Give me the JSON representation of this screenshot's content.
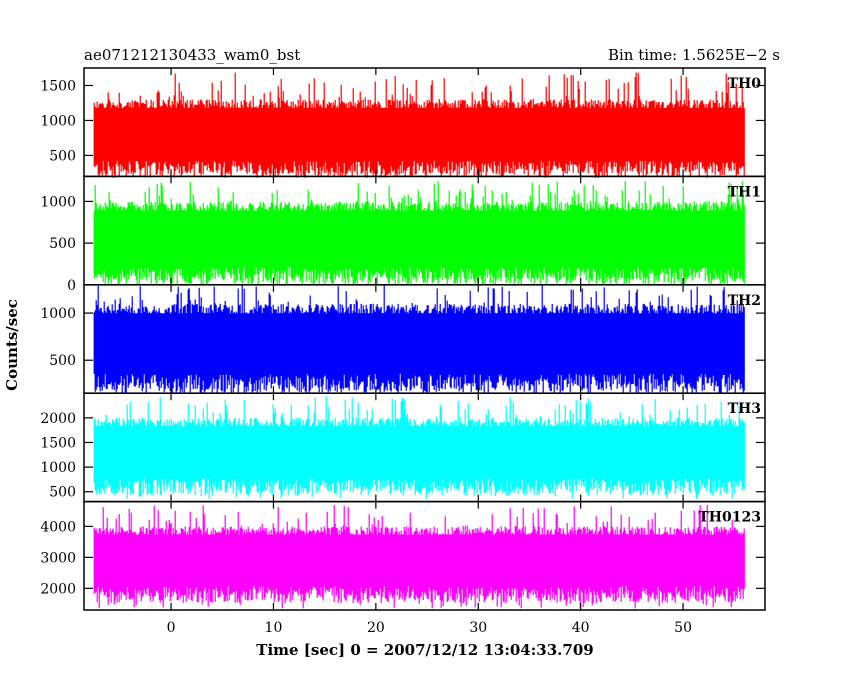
{
  "chart_data": {
    "type": "line",
    "title_left": "ae071212130433_wam0_bst",
    "title_right": "Bin time: 1.5625E−2 s",
    "xlabel": "Time [sec] 0 = 2007/12/12 13:04:33.709",
    "ylabel": "Counts/sec",
    "xlim": [
      -8.5,
      58
    ],
    "x_range_data": [
      -7.5,
      56
    ],
    "x_ticks": [
      0,
      10,
      20,
      30,
      40,
      50
    ],
    "x_tick_labels": [
      "0",
      "10",
      "20",
      "30",
      "40",
      "50"
    ],
    "grid": false,
    "panels": [
      {
        "label": "TH0",
        "color": "#ff0000",
        "ylim": [
          200,
          1750
        ],
        "ticks": [
          500,
          1000,
          1500
        ],
        "tick_labels": [
          "500",
          "1000",
          "1500"
        ],
        "low": 300,
        "high": 1300,
        "min_spike": 200,
        "max_spike": 1700
      },
      {
        "label": "TH1",
        "color": "#00ff00",
        "ylim": [
          0,
          1300
        ],
        "ticks": [
          0,
          500,
          1000
        ],
        "tick_labels": [
          "0",
          "500",
          "1000"
        ],
        "low": 100,
        "high": 1000,
        "min_spike": 50,
        "max_spike": 1250
      },
      {
        "label": "TH2",
        "color": "#0000ff",
        "ylim": [
          150,
          1300
        ],
        "ticks": [
          500,
          1000
        ],
        "tick_labels": [
          "500",
          "1000"
        ],
        "low": 250,
        "high": 1100,
        "min_spike": 150,
        "max_spike": 1300
      },
      {
        "label": "TH3",
        "color": "#00ffff",
        "ylim": [
          300,
          2500
        ],
        "ticks": [
          500,
          1000,
          1500,
          2000
        ],
        "tick_labels": [
          "500",
          "1000",
          "1500",
          "2000"
        ],
        "low": 600,
        "high": 2000,
        "min_spike": 350,
        "max_spike": 2450
      },
      {
        "label": "TH0123",
        "color": "#ff00ff",
        "ylim": [
          1300,
          4800
        ],
        "ticks": [
          2000,
          3000,
          4000
        ],
        "tick_labels": [
          "2000",
          "3000",
          "4000"
        ],
        "low": 1800,
        "high": 4000,
        "min_spike": 1350,
        "max_spike": 4700
      }
    ]
  }
}
